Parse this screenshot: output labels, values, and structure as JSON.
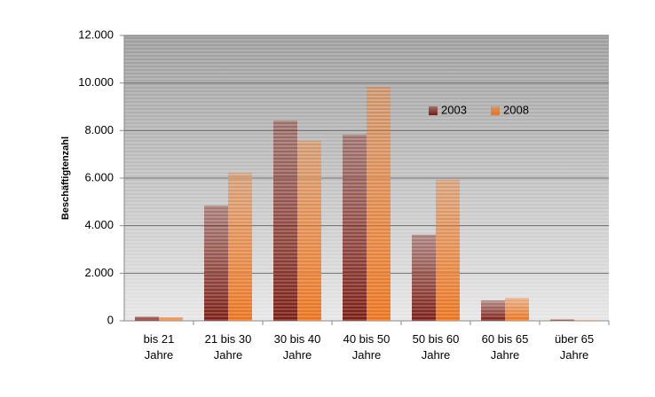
{
  "chart_data": {
    "type": "bar",
    "y_label": "Beschäftigtenzahl",
    "categories": [
      "bis 21\nJahre",
      "21 bis 30\nJahre",
      "30 bis 40\nJahre",
      "40 bis 50\nJahre",
      "50 bis 60\nJahre",
      "60 bis 65\nJahre",
      "über 65\nJahre"
    ],
    "series": [
      {
        "name": "2003",
        "color": "#7a1e14",
        "values": [
          180,
          4850,
          8420,
          7830,
          3620,
          860,
          60
        ]
      },
      {
        "name": "2008",
        "color": "#e8731e",
        "values": [
          150,
          6220,
          7570,
          9840,
          5930,
          970,
          30
        ]
      }
    ],
    "ylim": [
      0,
      12000
    ],
    "yticks": [
      0,
      {
        "value": 2000,
        "label": "2.000"
      },
      {
        "value": 4000,
        "label": "4.000"
      },
      {
        "value": 6000,
        "label": "6.000"
      },
      {
        "value": 8000,
        "label": "8.000"
      },
      {
        "value": 10000,
        "label": "10.000"
      },
      {
        "value": 12000,
        "label": "12.000"
      }
    ],
    "grid": true,
    "legend_position": "upper-right"
  }
}
